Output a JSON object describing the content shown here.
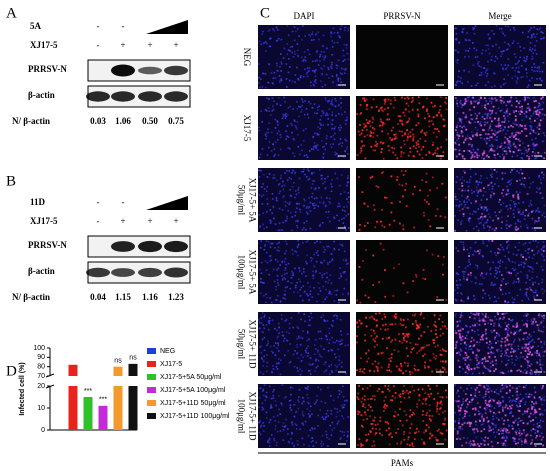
{
  "panel_a": {
    "label": "A",
    "treatment": "5A",
    "treatment_signs": [
      "-",
      "-"
    ],
    "virus": "XJ17-5",
    "virus_signs": [
      "-",
      "+",
      "+",
      "+"
    ],
    "blots": [
      "PRRSV-N",
      "β-actin"
    ],
    "ratio_label": "N/ β-actin",
    "ratios": [
      "0.03",
      "1.06",
      "0.50",
      "0.75"
    ]
  },
  "panel_b": {
    "label": "B",
    "treatment": "11D",
    "treatment_signs": [
      "-",
      "-"
    ],
    "virus": "XJ17-5",
    "virus_signs": [
      "-",
      "+",
      "+",
      "+"
    ],
    "blots": [
      "PRRSV-N",
      "β-actin"
    ],
    "ratio_label": "N/ β-actin",
    "ratios": [
      "0.04",
      "1.15",
      "1.16",
      "1.23"
    ]
  },
  "panel_c": {
    "label": "C",
    "columns": [
      "DAPI",
      "PRRSV-N",
      "Merge"
    ],
    "rows": [
      [
        "NEG"
      ],
      [
        "XJ17-5"
      ],
      [
        "XJ17-5+ 5A",
        "50μg/ml"
      ],
      [
        "XJ17-5+ 5A",
        "100μg/ml"
      ],
      [
        "XJ17-5+ 11D",
        "50μg/ml"
      ],
      [
        "XJ17-5+ 11D",
        "100μg/ml"
      ]
    ],
    "footer": "PAMs"
  },
  "panel_d_label": "D",
  "chart_data": {
    "type": "bar",
    "ylabel": "Infected cell (%)",
    "series": [
      {
        "name": "NEG",
        "color": "#1f3fd6",
        "values": [
          0
        ]
      },
      {
        "name": "XJ17-5",
        "color": "#e8231b",
        "values": [
          82
        ]
      },
      {
        "name": "XJ17-5+5A 50μg/ml",
        "color": "#2fc12a",
        "values": [
          15
        ],
        "annotation": "***"
      },
      {
        "name": "XJ17-5+5A 100μg/ml",
        "color": "#c42ad6",
        "values": [
          11
        ],
        "annotation": "***"
      },
      {
        "name": "XJ17-5+11D 50μg/ml",
        "color": "#f39a2c",
        "values": [
          80
        ],
        "annotation": "ns"
      },
      {
        "name": "XJ17-5+11D 100μg/ml",
        "color": "#111111",
        "values": [
          83
        ],
        "annotation": "ns"
      }
    ],
    "ylim": [
      0,
      100
    ],
    "axis_break": [
      20,
      70
    ],
    "yticks": [
      0,
      10,
      20,
      70,
      80,
      90,
      100
    ]
  }
}
